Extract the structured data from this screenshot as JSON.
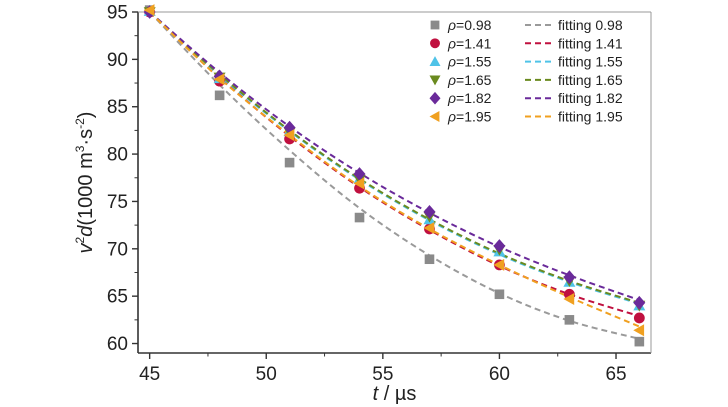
{
  "chart_data": {
    "type": "scatter",
    "title": "",
    "xlabel": {
      "var": "t",
      "sep": " / ",
      "unit": "µs"
    },
    "ylabel": {
      "base": "v",
      "sup": "2",
      "var": "d",
      "rest": "(1000 m",
      "sup2": "3",
      "mid": "·s",
      "sup3": "-2",
      "end": ")"
    },
    "xlim": [
      44.5,
      66.5
    ],
    "ylim": [
      59,
      95
    ],
    "xticks": [
      45,
      50,
      55,
      60,
      65
    ],
    "yticks": [
      60,
      65,
      70,
      75,
      80,
      85,
      90,
      95
    ],
    "x": [
      45,
      48,
      51,
      54,
      57,
      60,
      63,
      66
    ],
    "grid": false,
    "legend_position": "top-right",
    "series": [
      {
        "name": "ρ=0.98",
        "rho": "0.98",
        "marker": "square",
        "color": "#8a8a8a",
        "values": [
          95.2,
          86.2,
          79.1,
          73.3,
          68.9,
          65.2,
          62.5,
          60.2
        ],
        "fit_label": "fitting 0.98",
        "fit_color": "#9a9a9a",
        "fit": [
          95.0,
          87.3,
          80.4,
          74.3,
          69.3,
          65.3,
          62.4,
          60.5
        ]
      },
      {
        "name": "ρ=1.41",
        "rho": "1.41",
        "marker": "circle",
        "color": "#c0103f",
        "values": [
          95.0,
          87.7,
          81.6,
          76.4,
          72.1,
          68.3,
          65.2,
          62.7
        ],
        "fit_label": "fitting 1.41",
        "fit_color": "#c0103f",
        "fit": [
          95.0,
          88.1,
          81.9,
          76.5,
          72.0,
          68.2,
          65.2,
          62.9
        ]
      },
      {
        "name": "ρ=1.55",
        "rho": "1.55",
        "marker": "triangle-up",
        "color": "#4fc3e8",
        "values": [
          95.1,
          88.0,
          82.4,
          77.4,
          73.1,
          69.7,
          66.5,
          64.0
        ],
        "fit_label": "fitting 1.55",
        "fit_color": "#4fc3e8",
        "fit": [
          95.0,
          88.3,
          82.4,
          77.3,
          73.0,
          69.4,
          66.5,
          64.2
        ]
      },
      {
        "name": "ρ=1.65",
        "rho": "1.65",
        "marker": "triangle-down",
        "color": "#6a8a1f",
        "values": [
          95.0,
          88.1,
          82.3,
          77.3,
          73.4,
          69.9,
          66.6,
          64.0
        ],
        "fit_label": "fitting 1.65",
        "fit_color": "#6a8a1f",
        "fit": [
          95.0,
          88.4,
          82.5,
          77.4,
          73.1,
          69.5,
          66.6,
          64.3
        ]
      },
      {
        "name": "ρ=1.82",
        "rho": "1.82",
        "marker": "diamond",
        "color": "#6a2a9a",
        "values": [
          95.0,
          88.2,
          82.8,
          77.9,
          73.9,
          70.3,
          67.0,
          64.3
        ],
        "fit_label": "fitting 1.82",
        "fit_color": "#6a2a9a",
        "fit": [
          95.0,
          88.6,
          82.9,
          78.0,
          73.8,
          70.2,
          67.2,
          64.6
        ]
      },
      {
        "name": "ρ=1.95",
        "rho": "1.95",
        "marker": "triangle-left",
        "color": "#f0a020",
        "values": [
          95.2,
          87.9,
          82.0,
          76.9,
          72.2,
          68.3,
          64.7,
          61.4
        ],
        "fit_label": "fitting 1.95",
        "fit_color": "#f0a020",
        "fit": [
          95.0,
          88.0,
          82.0,
          76.6,
          72.1,
          68.3,
          64.9,
          61.8
        ]
      }
    ]
  }
}
